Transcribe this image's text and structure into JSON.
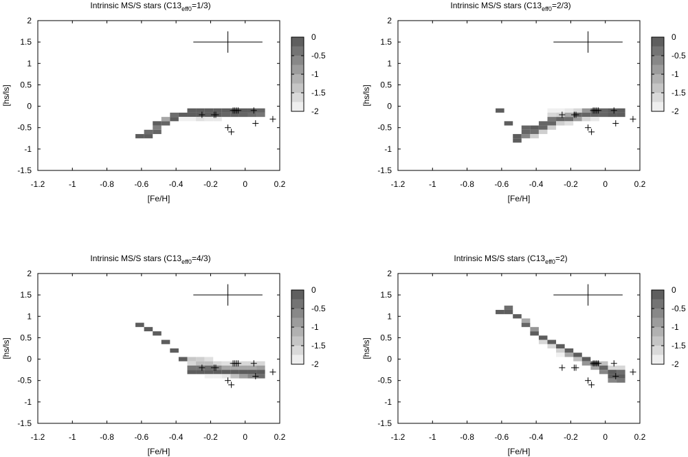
{
  "chart_data": [
    {
      "type": "heatmap",
      "title": "Intrinsic MS/S stars (C13",
      "title_sub": "eff0",
      "title_tail": "=1/3)",
      "xlabel": "[Fe/H]",
      "ylabel": "[hs/ls]",
      "xlim": [
        -1.2,
        0.2
      ],
      "ylim": [
        -1.5,
        2
      ],
      "xticks": [
        "-1.2",
        "-1",
        "-0.8",
        "-0.6",
        "-0.4",
        "-0.2",
        "0",
        "0.2"
      ],
      "yticks": [
        "-1.5",
        "-1",
        "-0.5",
        "0",
        "0.5",
        "1",
        "1.5",
        "2"
      ],
      "grid": false,
      "colorbar": {
        "range": [
          -2,
          0
        ],
        "ticks": [
          "0",
          "-0.5",
          "-1",
          "-1.5",
          "-2"
        ]
      },
      "error_bar": {
        "x": -0.1,
        "y": 1.5,
        "dx": 0.2,
        "dy": 0.25
      },
      "cells": [
        {
          "x": -0.61,
          "y": -0.7,
          "v": -0.1
        },
        {
          "x": -0.56,
          "y": -0.7,
          "v": -0.1
        },
        {
          "x": -0.56,
          "y": -0.6,
          "v": -0.3
        },
        {
          "x": -0.51,
          "y": -0.6,
          "v": -0.2
        },
        {
          "x": -0.51,
          "y": -0.5,
          "v": -0.5
        },
        {
          "x": -0.51,
          "y": -0.4,
          "v": -0.1
        },
        {
          "x": -0.46,
          "y": -0.4,
          "v": -0.2
        },
        {
          "x": -0.46,
          "y": -0.3,
          "v": -1.0
        },
        {
          "x": -0.41,
          "y": -0.3,
          "v": -0.1
        },
        {
          "x": -0.41,
          "y": -0.2,
          "v": -0.3
        },
        {
          "x": -0.36,
          "y": -0.2,
          "v": -0.1
        },
        {
          "x": -0.36,
          "y": -0.3,
          "v": -1.9
        },
        {
          "x": -0.31,
          "y": -0.1,
          "v": -0.1
        },
        {
          "x": -0.31,
          "y": -0.2,
          "v": -0.1
        },
        {
          "x": -0.31,
          "y": -0.3,
          "v": -1.9
        },
        {
          "x": -0.26,
          "y": -0.1,
          "v": -0.1
        },
        {
          "x": -0.26,
          "y": -0.2,
          "v": -0.1
        },
        {
          "x": -0.26,
          "y": -0.3,
          "v": -1.7
        },
        {
          "x": -0.21,
          "y": -0.1,
          "v": -0.1
        },
        {
          "x": -0.21,
          "y": -0.2,
          "v": -0.1
        },
        {
          "x": -0.21,
          "y": -0.3,
          "v": -1.8
        },
        {
          "x": -0.16,
          "y": -0.1,
          "v": -0.1
        },
        {
          "x": -0.16,
          "y": -0.2,
          "v": -0.1
        },
        {
          "x": -0.16,
          "y": -0.3,
          "v": -1.8
        },
        {
          "x": -0.11,
          "y": -0.1,
          "v": -0.1
        },
        {
          "x": -0.11,
          "y": -0.2,
          "v": -0.2
        },
        {
          "x": -0.06,
          "y": -0.1,
          "v": -0.1
        },
        {
          "x": -0.06,
          "y": -0.2,
          "v": -0.2
        },
        {
          "x": -0.01,
          "y": -0.1,
          "v": -0.1
        },
        {
          "x": -0.01,
          "y": -0.2,
          "v": -0.2
        },
        {
          "x": 0.04,
          "y": -0.1,
          "v": -0.1
        },
        {
          "x": 0.04,
          "y": -0.2,
          "v": -0.3
        },
        {
          "x": 0.09,
          "y": -0.1,
          "v": -0.2
        },
        {
          "x": 0.09,
          "y": -0.2,
          "v": -0.4
        }
      ],
      "points": [
        {
          "x": -0.25,
          "y": -0.2
        },
        {
          "x": -0.18,
          "y": -0.2
        },
        {
          "x": -0.17,
          "y": -0.2
        },
        {
          "x": -0.07,
          "y": -0.1
        },
        {
          "x": -0.06,
          "y": -0.1
        },
        {
          "x": -0.05,
          "y": -0.1
        },
        {
          "x": -0.04,
          "y": -0.1
        },
        {
          "x": 0.05,
          "y": -0.1
        },
        {
          "x": -0.1,
          "y": -0.5
        },
        {
          "x": -0.08,
          "y": -0.6
        },
        {
          "x": 0.06,
          "y": -0.4
        },
        {
          "x": 0.16,
          "y": -0.3
        }
      ]
    },
    {
      "type": "heatmap",
      "title": "Intrinsic MS/S stars (C13",
      "title_sub": "eff0",
      "title_tail": "=2/3)",
      "xlabel": "[Fe/H]",
      "ylabel": "[hs/ls]",
      "xlim": [
        -1.2,
        0.2
      ],
      "ylim": [
        -1.5,
        2
      ],
      "xticks": [
        "-1.2",
        "-1",
        "-0.8",
        "-0.6",
        "-0.4",
        "-0.2",
        "0",
        "0.2"
      ],
      "yticks": [
        "-1.5",
        "-1",
        "-0.5",
        "0",
        "0.5",
        "1",
        "1.5",
        "2"
      ],
      "grid": false,
      "colorbar": {
        "range": [
          -2,
          0
        ],
        "ticks": [
          "0",
          "-0.5",
          "-1",
          "-1.5",
          "-2"
        ]
      },
      "error_bar": {
        "x": -0.1,
        "y": 1.5,
        "dx": 0.2,
        "dy": 0.25
      },
      "cells": [
        {
          "x": -0.61,
          "y": -0.1,
          "v": -0.1
        },
        {
          "x": -0.56,
          "y": -0.4,
          "v": -0.1
        },
        {
          "x": -0.51,
          "y": -0.7,
          "v": -0.1
        },
        {
          "x": -0.51,
          "y": -0.8,
          "v": -0.1
        },
        {
          "x": -0.46,
          "y": -0.5,
          "v": -0.2
        },
        {
          "x": -0.46,
          "y": -0.6,
          "v": -0.2
        },
        {
          "x": -0.46,
          "y": -0.7,
          "v": -0.6
        },
        {
          "x": -0.41,
          "y": -0.5,
          "v": -0.1
        },
        {
          "x": -0.41,
          "y": -0.6,
          "v": -0.3
        },
        {
          "x": -0.41,
          "y": -0.7,
          "v": -1.5
        },
        {
          "x": -0.36,
          "y": -0.4,
          "v": -0.2
        },
        {
          "x": -0.36,
          "y": -0.5,
          "v": -0.2
        },
        {
          "x": -0.36,
          "y": -0.6,
          "v": -1.5
        },
        {
          "x": -0.31,
          "y": -0.1,
          "v": -1.9
        },
        {
          "x": -0.31,
          "y": -0.2,
          "v": -1.6
        },
        {
          "x": -0.31,
          "y": -0.3,
          "v": -0.4
        },
        {
          "x": -0.31,
          "y": -0.4,
          "v": -0.2
        },
        {
          "x": -0.31,
          "y": -0.5,
          "v": -1.5
        },
        {
          "x": -0.26,
          "y": -0.1,
          "v": -1.9
        },
        {
          "x": -0.26,
          "y": -0.2,
          "v": -1.5
        },
        {
          "x": -0.26,
          "y": -0.3,
          "v": -0.2
        },
        {
          "x": -0.26,
          "y": -0.4,
          "v": -1.5
        },
        {
          "x": -0.21,
          "y": -0.1,
          "v": -1.8
        },
        {
          "x": -0.21,
          "y": -0.2,
          "v": -1.0
        },
        {
          "x": -0.21,
          "y": -0.3,
          "v": -0.3
        },
        {
          "x": -0.21,
          "y": -0.4,
          "v": -1.7
        },
        {
          "x": -0.16,
          "y": -0.1,
          "v": -1.6
        },
        {
          "x": -0.16,
          "y": -0.2,
          "v": -0.2
        },
        {
          "x": -0.16,
          "y": -0.3,
          "v": -0.9
        },
        {
          "x": -0.11,
          "y": -0.1,
          "v": -0.8
        },
        {
          "x": -0.11,
          "y": -0.2,
          "v": -0.2
        },
        {
          "x": -0.11,
          "y": -0.3,
          "v": -1.6
        },
        {
          "x": -0.06,
          "y": -0.1,
          "v": -0.2
        },
        {
          "x": -0.06,
          "y": -0.2,
          "v": -0.2
        },
        {
          "x": -0.06,
          "y": -0.3,
          "v": -1.8
        },
        {
          "x": -0.01,
          "y": -0.1,
          "v": -0.2
        },
        {
          "x": -0.01,
          "y": -0.2,
          "v": -0.2
        },
        {
          "x": 0.04,
          "y": -0.1,
          "v": -0.1
        },
        {
          "x": 0.04,
          "y": -0.2,
          "v": -0.1
        },
        {
          "x": 0.09,
          "y": -0.1,
          "v": -0.1
        },
        {
          "x": 0.09,
          "y": -0.2,
          "v": -0.1
        }
      ],
      "points": [
        {
          "x": -0.25,
          "y": -0.2
        },
        {
          "x": -0.18,
          "y": -0.2
        },
        {
          "x": -0.17,
          "y": -0.2
        },
        {
          "x": -0.07,
          "y": -0.1
        },
        {
          "x": -0.06,
          "y": -0.1
        },
        {
          "x": -0.05,
          "y": -0.1
        },
        {
          "x": -0.04,
          "y": -0.1
        },
        {
          "x": 0.05,
          "y": -0.1
        },
        {
          "x": -0.1,
          "y": -0.5
        },
        {
          "x": -0.08,
          "y": -0.6
        },
        {
          "x": 0.06,
          "y": -0.4
        },
        {
          "x": 0.16,
          "y": -0.3
        }
      ]
    },
    {
      "type": "heatmap",
      "title": "Intrinsic MS/S stars (C13",
      "title_sub": "eff0",
      "title_tail": "=4/3)",
      "xlabel": "[Fe/H]",
      "ylabel": "[hs/ls]",
      "xlim": [
        -1.2,
        0.2
      ],
      "ylim": [
        -1.5,
        2
      ],
      "xticks": [
        "-1.2",
        "-1",
        "-0.8",
        "-0.6",
        "-0.4",
        "-0.2",
        "0",
        "0.2"
      ],
      "yticks": [
        "-1.5",
        "-1",
        "-0.5",
        "0",
        "0.5",
        "1",
        "1.5",
        "2"
      ],
      "grid": false,
      "colorbar": {
        "range": [
          -2,
          0
        ],
        "ticks": [
          "0",
          "-0.5",
          "-1",
          "-1.5",
          "-2"
        ]
      },
      "error_bar": {
        "x": -0.1,
        "y": 1.5,
        "dx": 0.2,
        "dy": 0.25
      },
      "cells": [
        {
          "x": -0.61,
          "y": 0.8,
          "v": -0.1
        },
        {
          "x": -0.56,
          "y": 0.7,
          "v": -0.1
        },
        {
          "x": -0.51,
          "y": 0.6,
          "v": -0.1
        },
        {
          "x": -0.46,
          "y": 0.4,
          "v": -0.1
        },
        {
          "x": -0.41,
          "y": 0.2,
          "v": -0.1
        },
        {
          "x": -0.36,
          "y": 0.0,
          "v": -0.1
        },
        {
          "x": -0.31,
          "y": 0.0,
          "v": -1.4
        },
        {
          "x": -0.31,
          "y": -0.1,
          "v": -1.6
        },
        {
          "x": -0.31,
          "y": -0.2,
          "v": -0.4
        },
        {
          "x": -0.31,
          "y": -0.3,
          "v": -0.1
        },
        {
          "x": -0.26,
          "y": 0.0,
          "v": -1.5
        },
        {
          "x": -0.26,
          "y": -0.1,
          "v": -1.3
        },
        {
          "x": -0.26,
          "y": -0.2,
          "v": -0.4
        },
        {
          "x": -0.26,
          "y": -0.3,
          "v": -0.1
        },
        {
          "x": -0.21,
          "y": 0.0,
          "v": -1.7
        },
        {
          "x": -0.21,
          "y": -0.1,
          "v": -1.3
        },
        {
          "x": -0.21,
          "y": -0.2,
          "v": -0.3
        },
        {
          "x": -0.21,
          "y": -0.3,
          "v": -0.1
        },
        {
          "x": -0.21,
          "y": -0.4,
          "v": -1.9
        },
        {
          "x": -0.16,
          "y": -0.1,
          "v": -1.6
        },
        {
          "x": -0.16,
          "y": -0.2,
          "v": -0.6
        },
        {
          "x": -0.16,
          "y": -0.3,
          "v": -0.1
        },
        {
          "x": -0.16,
          "y": -0.4,
          "v": -1.9
        },
        {
          "x": -0.11,
          "y": -0.1,
          "v": -1.7
        },
        {
          "x": -0.11,
          "y": -0.2,
          "v": -1.0
        },
        {
          "x": -0.11,
          "y": -0.3,
          "v": -0.1
        },
        {
          "x": -0.11,
          "y": -0.4,
          "v": -1.8
        },
        {
          "x": -0.06,
          "y": -0.1,
          "v": -1.6
        },
        {
          "x": -0.06,
          "y": -0.2,
          "v": -1.0
        },
        {
          "x": -0.06,
          "y": -0.3,
          "v": -0.1
        },
        {
          "x": -0.06,
          "y": -0.4,
          "v": -1.3
        },
        {
          "x": -0.01,
          "y": -0.1,
          "v": -1.6
        },
        {
          "x": -0.01,
          "y": -0.2,
          "v": -1.0
        },
        {
          "x": -0.01,
          "y": -0.3,
          "v": -0.1
        },
        {
          "x": -0.01,
          "y": -0.4,
          "v": -0.9
        },
        {
          "x": 0.04,
          "y": -0.1,
          "v": -1.6
        },
        {
          "x": 0.04,
          "y": -0.2,
          "v": -1.0
        },
        {
          "x": 0.04,
          "y": -0.3,
          "v": -0.1
        },
        {
          "x": 0.04,
          "y": -0.4,
          "v": -0.6
        },
        {
          "x": 0.09,
          "y": -0.1,
          "v": -1.6
        },
        {
          "x": 0.09,
          "y": -0.2,
          "v": -0.9
        },
        {
          "x": 0.09,
          "y": -0.3,
          "v": -0.1
        },
        {
          "x": 0.09,
          "y": -0.4,
          "v": -0.3
        }
      ],
      "points": [
        {
          "x": -0.25,
          "y": -0.2
        },
        {
          "x": -0.18,
          "y": -0.2
        },
        {
          "x": -0.17,
          "y": -0.2
        },
        {
          "x": -0.07,
          "y": -0.1
        },
        {
          "x": -0.06,
          "y": -0.1
        },
        {
          "x": -0.05,
          "y": -0.1
        },
        {
          "x": -0.04,
          "y": -0.1
        },
        {
          "x": 0.05,
          "y": -0.1
        },
        {
          "x": -0.1,
          "y": -0.5
        },
        {
          "x": -0.08,
          "y": -0.6
        },
        {
          "x": 0.06,
          "y": -0.4
        },
        {
          "x": 0.16,
          "y": -0.3
        }
      ]
    },
    {
      "type": "heatmap",
      "title": "Intrinsic MS/S stars (C13",
      "title_sub": "eff0",
      "title_tail": "=2)",
      "xlabel": "[Fe/H]",
      "ylabel": "[hs/ls]",
      "xlim": [
        -1.2,
        0.2
      ],
      "ylim": [
        -1.5,
        2
      ],
      "xticks": [
        "-1.2",
        "-1",
        "-0.8",
        "-0.6",
        "-0.4",
        "-0.2",
        "0",
        "0.2"
      ],
      "yticks": [
        "-1.5",
        "-1",
        "-0.5",
        "0",
        "0.5",
        "1",
        "1.5",
        "2"
      ],
      "grid": false,
      "colorbar": {
        "range": [
          -2,
          0
        ],
        "ticks": [
          "0",
          "-0.5",
          "-1",
          "-1.5",
          "-2"
        ]
      },
      "error_bar": {
        "x": -0.1,
        "y": 1.5,
        "dx": 0.2,
        "dy": 0.25
      },
      "cells": [
        {
          "x": -0.61,
          "y": 1.1,
          "v": -0.1
        },
        {
          "x": -0.56,
          "y": 1.1,
          "v": -0.1
        },
        {
          "x": -0.56,
          "y": 1.2,
          "v": -0.3
        },
        {
          "x": -0.51,
          "y": 1.0,
          "v": -0.1
        },
        {
          "x": -0.46,
          "y": 0.8,
          "v": -0.2
        },
        {
          "x": -0.46,
          "y": 0.9,
          "v": -1.0
        },
        {
          "x": -0.41,
          "y": 0.6,
          "v": -0.1
        },
        {
          "x": -0.41,
          "y": 0.7,
          "v": -0.8
        },
        {
          "x": -0.36,
          "y": 0.5,
          "v": -0.1
        },
        {
          "x": -0.36,
          "y": 0.4,
          "v": -1.6
        },
        {
          "x": -0.31,
          "y": 0.4,
          "v": -0.1
        },
        {
          "x": -0.31,
          "y": 0.3,
          "v": -1.6
        },
        {
          "x": -0.26,
          "y": 0.3,
          "v": -0.1
        },
        {
          "x": -0.26,
          "y": 0.2,
          "v": -1.5
        },
        {
          "x": -0.26,
          "y": 0.1,
          "v": -1.9
        },
        {
          "x": -0.21,
          "y": 0.2,
          "v": -0.1
        },
        {
          "x": -0.21,
          "y": 0.1,
          "v": -1.0
        },
        {
          "x": -0.16,
          "y": 0.1,
          "v": -0.1
        },
        {
          "x": -0.16,
          "y": 0.0,
          "v": -1.3
        },
        {
          "x": -0.11,
          "y": 0.0,
          "v": -0.1
        },
        {
          "x": -0.11,
          "y": -0.1,
          "v": -0.8
        },
        {
          "x": -0.06,
          "y": -0.1,
          "v": -0.1
        },
        {
          "x": -0.06,
          "y": -0.2,
          "v": -1.0
        },
        {
          "x": -0.01,
          "y": -0.1,
          "v": -1.3
        },
        {
          "x": -0.01,
          "y": -0.2,
          "v": -0.2
        },
        {
          "x": -0.01,
          "y": -0.3,
          "v": -0.6
        },
        {
          "x": 0.04,
          "y": -0.2,
          "v": -1.6
        },
        {
          "x": 0.04,
          "y": -0.3,
          "v": -0.1
        },
        {
          "x": 0.04,
          "y": -0.4,
          "v": -0.1
        },
        {
          "x": 0.04,
          "y": -0.5,
          "v": -0.6
        },
        {
          "x": 0.09,
          "y": -0.2,
          "v": -1.6
        },
        {
          "x": 0.09,
          "y": -0.3,
          "v": -0.3
        },
        {
          "x": 0.09,
          "y": -0.4,
          "v": -0.1
        },
        {
          "x": 0.09,
          "y": -0.5,
          "v": -0.4
        }
      ],
      "points": [
        {
          "x": -0.25,
          "y": -0.2
        },
        {
          "x": -0.18,
          "y": -0.2
        },
        {
          "x": -0.17,
          "y": -0.2
        },
        {
          "x": -0.07,
          "y": -0.1
        },
        {
          "x": -0.06,
          "y": -0.1
        },
        {
          "x": -0.05,
          "y": -0.1
        },
        {
          "x": -0.04,
          "y": -0.1
        },
        {
          "x": 0.05,
          "y": -0.1
        },
        {
          "x": -0.1,
          "y": -0.5
        },
        {
          "x": -0.08,
          "y": -0.6
        },
        {
          "x": 0.06,
          "y": -0.4
        },
        {
          "x": 0.16,
          "y": -0.3
        }
      ]
    }
  ]
}
